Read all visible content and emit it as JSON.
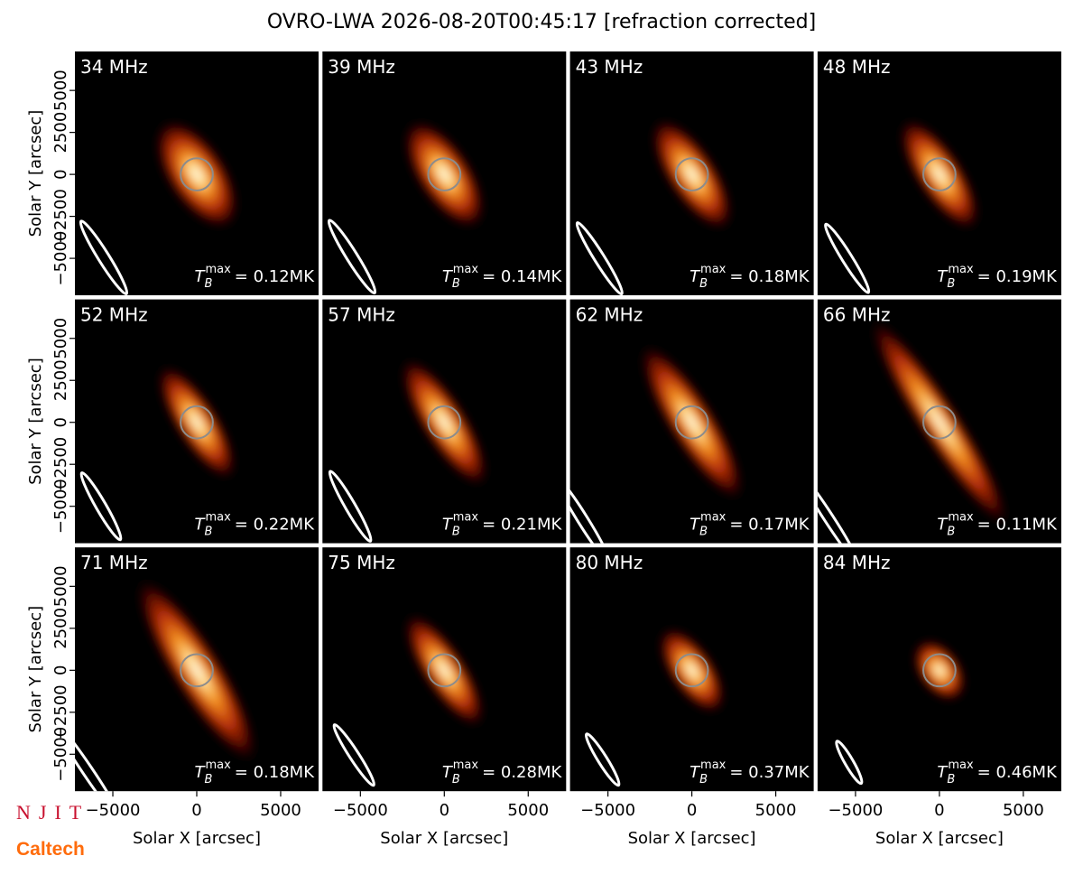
{
  "title": "OVRO-LWA 2026-08-20T00:45:17 [refraction corrected]",
  "xlabel": "Solar X [arcsec]",
  "ylabel": "Solar Y [arcsec]",
  "xlim": [
    -7260,
    7260
  ],
  "ylim": [
    -7200,
    7320
  ],
  "xticks": [
    {
      "value": -5000,
      "label": "−5000"
    },
    0,
    5000
  ],
  "yticks": [
    {
      "value": -5000,
      "label": "−5000"
    },
    {
      "value": -2500,
      "label": "−2500"
    },
    0,
    2500,
    5000
  ],
  "sun_radius": 960,
  "logos": [
    "NJIT",
    "Caltech"
  ],
  "chart_data": [
    {
      "type": "image",
      "title": "34 MHz",
      "tb": {
        "symbol": "T",
        "sub": "B",
        "sup": "max",
        "text": "= 0.12MK"
      },
      "source": {
        "x": 0,
        "y": 0,
        "major": 7500,
        "minor": 3600,
        "angle": -57
      },
      "beam": {
        "x": -5540,
        "y": -4950,
        "major": 5100,
        "minor": 650,
        "angle": -58
      }
    },
    {
      "type": "image",
      "title": "39 MHz",
      "tb": {
        "symbol": "T",
        "sub": "B",
        "sup": "max",
        "text": "= 0.14MK"
      },
      "source": {
        "x": 0,
        "y": 0,
        "major": 7500,
        "minor": 3300,
        "angle": -57
      },
      "beam": {
        "x": -5500,
        "y": -4900,
        "major": 5100,
        "minor": 650,
        "angle": -58
      }
    },
    {
      "type": "image",
      "title": "43 MHz",
      "tb": {
        "symbol": "T",
        "sub": "B",
        "sup": "max",
        "text": "= 0.18MK"
      },
      "source": {
        "x": 0,
        "y": 0,
        "major": 7800,
        "minor": 3000,
        "angle": -57
      },
      "beam": {
        "x": -5500,
        "y": -5000,
        "major": 5000,
        "minor": 600,
        "angle": -58
      }
    },
    {
      "type": "image",
      "title": "48 MHz",
      "tb": {
        "symbol": "T",
        "sub": "B",
        "sup": "max",
        "text": "= 0.19MK"
      },
      "source": {
        "x": 0,
        "y": 0,
        "major": 7800,
        "minor": 2800,
        "angle": -57
      },
      "beam": {
        "x": -5500,
        "y": -5000,
        "major": 4800,
        "minor": 600,
        "angle": -58
      }
    },
    {
      "type": "image",
      "title": "52 MHz",
      "tb": {
        "symbol": "T",
        "sub": "B",
        "sup": "max",
        "text": "= 0.22MK"
      },
      "source": {
        "x": 0,
        "y": 0,
        "major": 8000,
        "minor": 2600,
        "angle": -58
      },
      "beam": {
        "x": -5700,
        "y": -5000,
        "major": 4600,
        "minor": 600,
        "angle": -60
      }
    },
    {
      "type": "image",
      "title": "57 MHz",
      "tb": {
        "symbol": "T",
        "sub": "B",
        "sup": "max",
        "text": "= 0.21MK"
      },
      "source": {
        "x": 0,
        "y": 0,
        "major": 9000,
        "minor": 2700,
        "angle": -58
      },
      "beam": {
        "x": -5600,
        "y": -5000,
        "major": 4800,
        "minor": 600,
        "angle": -60
      }
    },
    {
      "type": "image",
      "title": "62 MHz",
      "tb": {
        "symbol": "T",
        "sub": "B",
        "sup": "max",
        "text": "= 0.17MK"
      },
      "source": {
        "x": 0,
        "y": 0,
        "major": 11000,
        "minor": 2800,
        "angle": -58
      },
      "beam": {
        "x": -6500,
        "y": -5800,
        "major": 6000,
        "minor": 600,
        "angle": -58
      }
    },
    {
      "type": "image",
      "title": "66 MHz",
      "tb": {
        "symbol": "T",
        "sub": "B",
        "sup": "max",
        "text": "= 0.11MK"
      },
      "source": {
        "x": 0,
        "y": 0,
        "major": 15000,
        "minor": 2400,
        "angle": -57
      },
      "beam": {
        "x": -6600,
        "y": -5700,
        "major": 6500,
        "minor": 550,
        "angle": -57
      }
    },
    {
      "type": "image",
      "title": "71 MHz",
      "tb": {
        "symbol": "T",
        "sub": "B",
        "sup": "max",
        "text": "= 0.18MK"
      },
      "source": {
        "x": 0,
        "y": 0,
        "major": 13000,
        "minor": 3000,
        "angle": -58
      },
      "beam": {
        "x": -6500,
        "y": -6000,
        "major": 7000,
        "minor": 600,
        "angle": -56
      }
    },
    {
      "type": "image",
      "title": "75 MHz",
      "tb": {
        "symbol": "T",
        "sub": "B",
        "sup": "max",
        "text": "= 0.28MK"
      },
      "source": {
        "x": 0,
        "y": 0,
        "major": 8000,
        "minor": 2600,
        "angle": -57
      },
      "beam": {
        "x": -5380,
        "y": -5050,
        "major": 4300,
        "minor": 560,
        "angle": -57
      }
    },
    {
      "type": "image",
      "title": "80 MHz",
      "tb": {
        "symbol": "T",
        "sub": "B",
        "sup": "max",
        "text": "= 0.37MK"
      },
      "source": {
        "x": 0,
        "y": 0,
        "major": 6000,
        "minor": 2700,
        "angle": -56
      },
      "beam": {
        "x": -5320,
        "y": -5320,
        "major": 3600,
        "minor": 540,
        "angle": -58
      }
    },
    {
      "type": "image",
      "title": "84 MHz",
      "tb": {
        "symbol": "T",
        "sub": "B",
        "sup": "max",
        "text": "= 0.46MK"
      },
      "source": {
        "x": 0,
        "y": 0,
        "major": 4200,
        "minor": 2600,
        "angle": -55
      },
      "beam": {
        "x": -5380,
        "y": -5480,
        "major": 2900,
        "minor": 500,
        "angle": -60
      }
    }
  ]
}
